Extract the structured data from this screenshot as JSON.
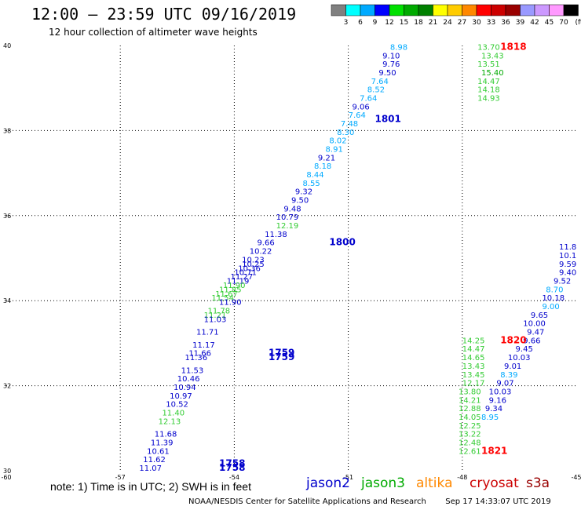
{
  "title": "12:00 – 23:59 UTC 09/16/2019",
  "subtitle": "12 hour collection of altimeter wave heights",
  "note": "note: 1) Time is in UTC; 2) SWH is in feet",
  "credit": "NOAA/NESDIS Center for Satellite Applications and Research",
  "timestamp": "Sep 17 14:33:07 UTC 2019",
  "colorbar": {
    "unit": "(ft)",
    "labels": [
      "3",
      "6",
      "9",
      "12",
      "15",
      "18",
      "21",
      "24",
      "27",
      "30",
      "33",
      "36",
      "39",
      "42",
      "45",
      "70"
    ],
    "colors": [
      "#808080",
      "#00ffff",
      "#00aaff",
      "#0000ff",
      "#00e000",
      "#00aa00",
      "#008000",
      "#ffff00",
      "#ffcc00",
      "#ff8800",
      "#ff0000",
      "#cc0000",
      "#990000",
      "#9999ff",
      "#cc99ff",
      "#ff99ff",
      "#000000"
    ]
  },
  "satellites": [
    {
      "name": "jason2",
      "color": "#0000cc"
    },
    {
      "name": "jason3",
      "color": "#00aa00"
    },
    {
      "name": "altika",
      "color": "#ff8800"
    },
    {
      "name": "cryosat",
      "color": "#cc0000"
    },
    {
      "name": "s3a",
      "color": "#990000"
    }
  ],
  "axes": {
    "lon_ticks": [
      "-60",
      "-57",
      "-54",
      "-51",
      "-48",
      "-45"
    ],
    "lat_ticks": [
      "30",
      "32",
      "34",
      "36",
      "38",
      "40"
    ]
  },
  "time_labels": [
    {
      "text": "1818",
      "color": "#ff0000",
      "lon": -47.0,
      "lat": 39.9
    },
    {
      "text": "1801",
      "color": "#0000cc",
      "lon": -50.3,
      "lat": 38.2
    },
    {
      "text": "1800",
      "color": "#0000cc",
      "lon": -51.5,
      "lat": 35.3
    },
    {
      "text": "1759",
      "color": "#0000cc",
      "lon": -53.1,
      "lat": 32.7
    },
    {
      "text": "1759",
      "color": "#0000cc",
      "lon": -53.1,
      "lat": 32.6
    },
    {
      "text": "1758",
      "color": "#0000cc",
      "lon": -54.4,
      "lat": 30.1
    },
    {
      "text": "1758",
      "color": "#0000cc",
      "lon": -54.4,
      "lat": 30.0
    },
    {
      "text": "1820",
      "color": "#ff0000",
      "lon": -47.0,
      "lat": 33.0
    },
    {
      "text": "1821",
      "color": "#ff0000",
      "lon": -47.5,
      "lat": 30.4
    }
  ],
  "tracks": [
    {
      "name": "jason2-north",
      "points": [
        {
          "v": "8.98",
          "c": "#00aaff",
          "lon": -49.9,
          "lat": 39.9
        },
        {
          "v": "9.10",
          "c": "#0000cc",
          "lon": -50.1,
          "lat": 39.7
        },
        {
          "v": "9.76",
          "c": "#0000cc",
          "lon": -50.1,
          "lat": 39.5
        },
        {
          "v": "9.50",
          "c": "#0000cc",
          "lon": -50.2,
          "lat": 39.3
        },
        {
          "v": "7.64",
          "c": "#00aaff",
          "lon": -50.4,
          "lat": 39.1
        },
        {
          "v": "8.52",
          "c": "#00aaff",
          "lon": -50.5,
          "lat": 38.9
        },
        {
          "v": "7.64",
          "c": "#00aaff",
          "lon": -50.7,
          "lat": 38.7
        },
        {
          "v": "9.06",
          "c": "#0000cc",
          "lon": -50.9,
          "lat": 38.5
        },
        {
          "v": "7.64",
          "c": "#00aaff",
          "lon": -51.0,
          "lat": 38.3
        },
        {
          "v": "7.48",
          "c": "#00aaff",
          "lon": -51.2,
          "lat": 38.1
        },
        {
          "v": "8.30",
          "c": "#00aaff",
          "lon": -51.3,
          "lat": 37.9
        },
        {
          "v": "8.02",
          "c": "#00aaff",
          "lon": -51.5,
          "lat": 37.7
        },
        {
          "v": "8.91",
          "c": "#00aaff",
          "lon": -51.6,
          "lat": 37.5
        },
        {
          "v": "9.21",
          "c": "#0000cc",
          "lon": -51.8,
          "lat": 37.3
        },
        {
          "v": "8.18",
          "c": "#00aaff",
          "lon": -51.9,
          "lat": 37.1
        },
        {
          "v": "8.44",
          "c": "#00aaff",
          "lon": -52.1,
          "lat": 36.9
        },
        {
          "v": "8.55",
          "c": "#00aaff",
          "lon": -52.2,
          "lat": 36.7
        },
        {
          "v": "9.32",
          "c": "#0000cc",
          "lon": -52.4,
          "lat": 36.5
        },
        {
          "v": "9.50",
          "c": "#0000cc",
          "lon": -52.5,
          "lat": 36.3
        },
        {
          "v": "9.48",
          "c": "#0000cc",
          "lon": -52.7,
          "lat": 36.1
        },
        {
          "v": "10.79",
          "c": "#0000cc",
          "lon": -52.9,
          "lat": 35.9
        },
        {
          "v": "12.19",
          "c": "#33cc33",
          "lon": -52.9,
          "lat": 35.7
        },
        {
          "v": "11.38",
          "c": "#0000cc",
          "lon": -53.2,
          "lat": 35.5
        },
        {
          "v": "9.66",
          "c": "#0000cc",
          "lon": -53.4,
          "lat": 35.3
        },
        {
          "v": "10.22",
          "c": "#0000cc",
          "lon": -53.6,
          "lat": 35.1
        },
        {
          "v": "10.23",
          "c": "#0000cc",
          "lon": -53.8,
          "lat": 34.9
        },
        {
          "v": "10.25",
          "c": "#0000cc",
          "lon": -53.8,
          "lat": 34.8
        },
        {
          "v": "10.36",
          "c": "#0000cc",
          "lon": -53.9,
          "lat": 34.7
        },
        {
          "v": "10.71",
          "c": "#0000cc",
          "lon": -54.0,
          "lat": 34.6
        },
        {
          "v": "11.27",
          "c": "#0000cc",
          "lon": -54.1,
          "lat": 34.5
        },
        {
          "v": "11.19",
          "c": "#0000cc",
          "lon": -54.2,
          "lat": 34.4
        }
      ]
    },
    {
      "name": "jason3-mid",
      "points": [
        {
          "v": "11.90",
          "c": "#33cc33",
          "lon": -54.3,
          "lat": 34.3
        },
        {
          "v": "11.85",
          "c": "#33cc33",
          "lon": -54.4,
          "lat": 34.2
        },
        {
          "v": "11.67",
          "c": "#33cc33",
          "lon": -54.5,
          "lat": 34.1
        },
        {
          "v": "11.54",
          "c": "#33cc33",
          "lon": -54.6,
          "lat": 34.0
        },
        {
          "v": "11.90",
          "c": "#0000cc",
          "lon": -54.4,
          "lat": 33.9
        },
        {
          "v": "11.78",
          "c": "#33cc33",
          "lon": -54.7,
          "lat": 33.7
        },
        {
          "v": "11.21",
          "c": "#33cc33",
          "lon": -54.8,
          "lat": 33.6
        },
        {
          "v": "11.03",
          "c": "#0000cc",
          "lon": -54.8,
          "lat": 33.5
        },
        {
          "v": "11.71",
          "c": "#0000cc",
          "lon": -55.0,
          "lat": 33.2
        },
        {
          "v": "11.17",
          "c": "#0000cc",
          "lon": -55.1,
          "lat": 32.9
        },
        {
          "v": "11.66",
          "c": "#0000cc",
          "lon": -55.2,
          "lat": 32.7
        },
        {
          "v": "11.36",
          "c": "#0000cc",
          "lon": -55.3,
          "lat": 32.6
        },
        {
          "v": "11.53",
          "c": "#0000cc",
          "lon": -55.4,
          "lat": 32.3
        },
        {
          "v": "10.46",
          "c": "#0000cc",
          "lon": -55.5,
          "lat": 32.1
        },
        {
          "v": "10.94",
          "c": "#0000cc",
          "lon": -55.6,
          "lat": 31.9
        },
        {
          "v": "10.97",
          "c": "#0000cc",
          "lon": -55.7,
          "lat": 31.7
        },
        {
          "v": "10.52",
          "c": "#0000cc",
          "lon": -55.8,
          "lat": 31.5
        },
        {
          "v": "11.40",
          "c": "#33cc33",
          "lon": -55.9,
          "lat": 31.3
        },
        {
          "v": "12.13",
          "c": "#33cc33",
          "lon": -56.0,
          "lat": 31.1
        },
        {
          "v": "11.68",
          "c": "#0000cc",
          "lon": -56.1,
          "lat": 30.8
        },
        {
          "v": "11.39",
          "c": "#0000cc",
          "lon": -56.2,
          "lat": 30.6
        },
        {
          "v": "10.61",
          "c": "#0000cc",
          "lon": -56.3,
          "lat": 30.4
        },
        {
          "v": "11.62",
          "c": "#0000cc",
          "lon": -56.4,
          "lat": 30.2
        },
        {
          "v": "11.07",
          "c": "#0000cc",
          "lon": -56.5,
          "lat": 30.0
        }
      ]
    },
    {
      "name": "jason3-ne",
      "points": [
        {
          "v": "13.70",
          "c": "#33cc33",
          "lon": -47.6,
          "lat": 39.9
        },
        {
          "v": "13.43",
          "c": "#33cc33",
          "lon": -47.5,
          "lat": 39.7
        },
        {
          "v": "13.51",
          "c": "#33cc33",
          "lon": -47.6,
          "lat": 39.5
        },
        {
          "v": "15.40",
          "c": "#00aa00",
          "lon": -47.5,
          "lat": 39.3
        },
        {
          "v": "14.47",
          "c": "#33cc33",
          "lon": -47.6,
          "lat": 39.1
        },
        {
          "v": "14.18",
          "c": "#33cc33",
          "lon": -47.6,
          "lat": 38.9
        },
        {
          "v": "14.93",
          "c": "#33cc33",
          "lon": -47.6,
          "lat": 38.7
        }
      ]
    },
    {
      "name": "jason3-se",
      "points": [
        {
          "v": "14.25",
          "c": "#33cc33",
          "lon": -48.0,
          "lat": 33.0
        },
        {
          "v": "14.47",
          "c": "#33cc33",
          "lon": -48.0,
          "lat": 32.8
        },
        {
          "v": "14.65",
          "c": "#33cc33",
          "lon": -48.0,
          "lat": 32.6
        },
        {
          "v": "13.43",
          "c": "#33cc33",
          "lon": -48.0,
          "lat": 32.4
        },
        {
          "v": "13.45",
          "c": "#33cc33",
          "lon": -48.0,
          "lat": 32.2
        },
        {
          "v": "12.17",
          "c": "#33cc33",
          "lon": -48.0,
          "lat": 32.0
        },
        {
          "v": "13.80",
          "c": "#33cc33",
          "lon": -48.1,
          "lat": 31.8
        },
        {
          "v": "14.21",
          "c": "#33cc33",
          "lon": -48.1,
          "lat": 31.6
        },
        {
          "v": "12.88",
          "c": "#33cc33",
          "lon": -48.1,
          "lat": 31.4
        },
        {
          "v": "14.05",
          "c": "#33cc33",
          "lon": -48.1,
          "lat": 31.2
        },
        {
          "v": "12.25",
          "c": "#33cc33",
          "lon": -48.1,
          "lat": 31.0
        },
        {
          "v": "13.22",
          "c": "#33cc33",
          "lon": -48.1,
          "lat": 30.8
        },
        {
          "v": "12.48",
          "c": "#33cc33",
          "lon": -48.1,
          "lat": 30.6
        },
        {
          "v": "12.61",
          "c": "#33cc33",
          "lon": -48.1,
          "lat": 30.4
        }
      ]
    },
    {
      "name": "jason2-east",
      "points": [
        {
          "v": "11.8",
          "c": "#0000cc",
          "lon": -45.3,
          "lat": 35.2
        },
        {
          "v": "10.1",
          "c": "#0000cc",
          "lon": -45.3,
          "lat": 35.0
        },
        {
          "v": "9.59",
          "c": "#0000cc",
          "lon": -45.3,
          "lat": 34.8
        },
        {
          "v": "9.40",
          "c": "#0000cc",
          "lon": -45.4,
          "lat": 34.6
        },
        {
          "v": "9.52",
          "c": "#0000cc",
          "lon": -45.6,
          "lat": 34.4
        },
        {
          "v": "8.70",
          "c": "#00aaff",
          "lon": -45.8,
          "lat": 34.2
        },
        {
          "v": "10.18",
          "c": "#0000cc",
          "lon": -45.9,
          "lat": 34.0
        },
        {
          "v": "9.00",
          "c": "#00aaff",
          "lon": -45.9,
          "lat": 33.8
        },
        {
          "v": "9.65",
          "c": "#0000cc",
          "lon": -46.2,
          "lat": 33.6
        },
        {
          "v": "10.00",
          "c": "#0000cc",
          "lon": -46.4,
          "lat": 33.4
        },
        {
          "v": "9.47",
          "c": "#0000cc",
          "lon": -46.3,
          "lat": 33.2
        },
        {
          "v": "9.66",
          "c": "#0000cc",
          "lon": -46.4,
          "lat": 33.0
        },
        {
          "v": "9.45",
          "c": "#0000cc",
          "lon": -46.6,
          "lat": 32.8
        },
        {
          "v": "10.03",
          "c": "#0000cc",
          "lon": -46.8,
          "lat": 32.6
        },
        {
          "v": "9.01",
          "c": "#0000cc",
          "lon": -46.9,
          "lat": 32.4
        },
        {
          "v": "8.39",
          "c": "#00aaff",
          "lon": -47.0,
          "lat": 32.2
        },
        {
          "v": "9.07",
          "c": "#0000cc",
          "lon": -47.1,
          "lat": 32.0
        },
        {
          "v": "10.03",
          "c": "#0000cc",
          "lon": -47.3,
          "lat": 31.8
        },
        {
          "v": "9.16",
          "c": "#0000cc",
          "lon": -47.3,
          "lat": 31.6
        },
        {
          "v": "9.34",
          "c": "#0000cc",
          "lon": -47.4,
          "lat": 31.4
        },
        {
          "v": "8.95",
          "c": "#00aaff",
          "lon": -47.5,
          "lat": 31.2
        }
      ]
    }
  ]
}
